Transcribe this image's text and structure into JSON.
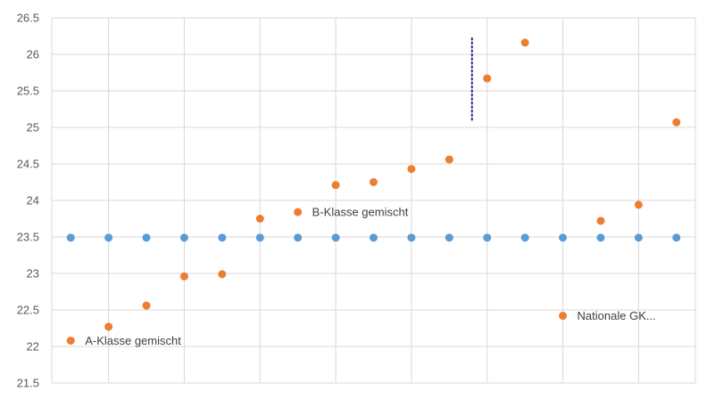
{
  "chart_data": {
    "type": "scatter",
    "title": "",
    "xlabel": "",
    "ylabel": "",
    "xlim": [
      0.5,
      17.5
    ],
    "ylim": [
      21.5,
      26.5
    ],
    "yticks": [
      "21.5",
      "22",
      "22.5",
      "23",
      "23.5",
      "24",
      "24.5",
      "25",
      "25.5",
      "26",
      "26.5"
    ],
    "grid": true,
    "legend": "none",
    "series": [
      {
        "color": "#5b9bd5",
        "points": [
          [
            1,
            23.49
          ],
          [
            2,
            23.49
          ],
          [
            3,
            23.49
          ],
          [
            4,
            23.49
          ],
          [
            5,
            23.49
          ],
          [
            6,
            23.49
          ],
          [
            7,
            23.49
          ],
          [
            8,
            23.49
          ],
          [
            9,
            23.49
          ],
          [
            10,
            23.49
          ],
          [
            11,
            23.49
          ],
          [
            12,
            23.49
          ],
          [
            13,
            23.49
          ],
          [
            14,
            23.49
          ],
          [
            15,
            23.49
          ],
          [
            16,
            23.49
          ],
          [
            17,
            23.49
          ]
        ]
      },
      {
        "color": "#ed7d31",
        "points": [
          [
            2,
            22.27
          ],
          [
            3,
            22.56
          ],
          [
            4,
            22.96
          ],
          [
            5,
            22.99
          ],
          [
            6,
            23.75
          ],
          [
            8,
            24.21
          ],
          [
            9,
            24.25
          ],
          [
            10,
            24.43
          ],
          [
            11,
            24.56
          ],
          [
            12,
            25.67
          ],
          [
            13,
            26.16
          ],
          [
            15,
            23.72
          ],
          [
            16,
            23.94
          ],
          [
            17,
            25.07
          ]
        ]
      }
    ],
    "annotations": [
      {
        "text": "A-Klasse gemischt",
        "x": 1,
        "y": 22.08,
        "marker_color": "#ed7d31"
      },
      {
        "text": "B-Klasse gemischt",
        "x": 7,
        "y": 23.84,
        "marker_color": "#ed7d31"
      },
      {
        "text": "Nationale GK...",
        "x": 14,
        "y": 22.42,
        "marker_color": "#ed7d31"
      }
    ],
    "dotted_line": {
      "color": "#1f1f8f",
      "x": 11.6,
      "y_range": [
        25.08,
        26.22
      ]
    }
  }
}
